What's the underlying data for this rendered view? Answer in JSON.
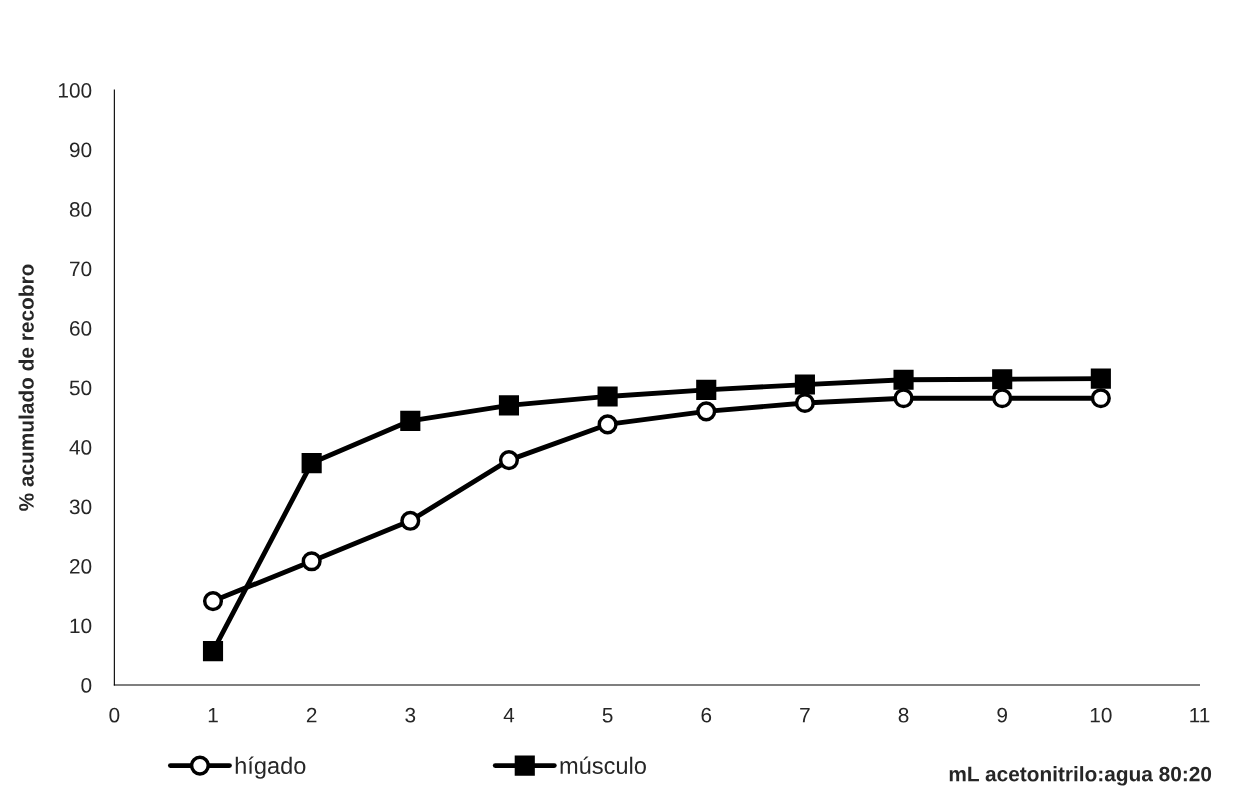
{
  "chart_data": {
    "type": "line",
    "xlabel": "mL acetonitrilo:agua 80:20",
    "ylabel": "% acumulado de recobro",
    "x": [
      1,
      2,
      3,
      4,
      5,
      6,
      7,
      8,
      9,
      10
    ],
    "series": [
      {
        "name": "hígado",
        "color": "#000000",
        "marker": "circle",
        "values": [
          14.1,
          20.8,
          27.6,
          37.8,
          43.8,
          46.0,
          47.4,
          48.2,
          48.2,
          48.2
        ]
      },
      {
        "name": "músculo",
        "color": "#000000",
        "marker": "square",
        "values": [
          5.7,
          37.3,
          44.4,
          47.0,
          48.5,
          49.6,
          50.5,
          51.3,
          51.4,
          51.5
        ]
      }
    ],
    "xlim": [
      0,
      11
    ],
    "xticks": [
      0,
      1,
      2,
      3,
      4,
      5,
      6,
      7,
      8,
      9,
      10,
      11
    ],
    "ylim": [
      0,
      100
    ],
    "yticks": [
      0,
      10,
      20,
      30,
      40,
      50,
      60,
      70,
      80,
      90,
      100
    ],
    "grid": false,
    "legend": "bottom",
    "line_style": "solid"
  }
}
